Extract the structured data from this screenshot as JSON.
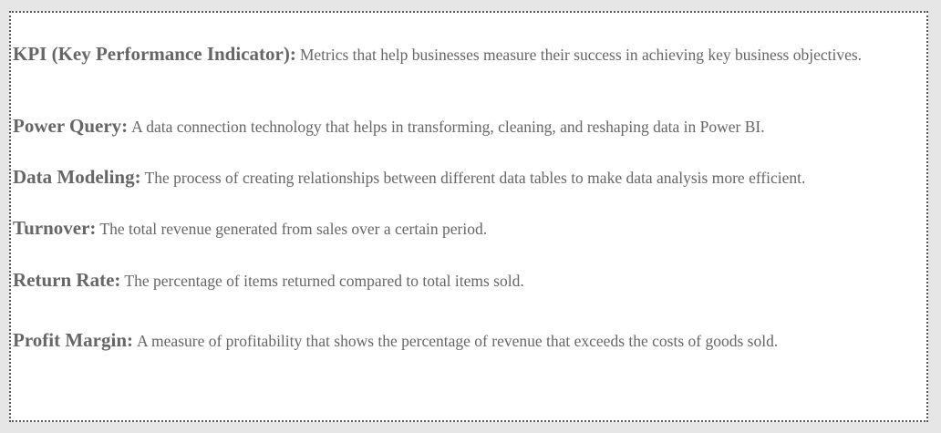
{
  "glossary": {
    "entries": [
      {
        "term": "KPI (Key Performance Indicator):",
        "definition": "Metrics that help businesses measure their success in achieving key business objectives."
      },
      {
        "term": "Power Query:",
        "definition": "A data connection technology that helps in transforming, cleaning, and reshaping data in Power BI."
      },
      {
        "term": "Data Modeling:",
        "definition": "The process of creating relationships between different data tables to make data analysis more efficient."
      },
      {
        "term": "Turnover:",
        "definition": "The total revenue generated from sales over a certain period."
      },
      {
        "term": "Return Rate:",
        "definition": "The percentage of items returned compared to total items sold."
      },
      {
        "term": "Profit Margin:",
        "definition": "A measure of profitability that shows the percentage of revenue that exceeds the costs of goods sold."
      }
    ]
  }
}
